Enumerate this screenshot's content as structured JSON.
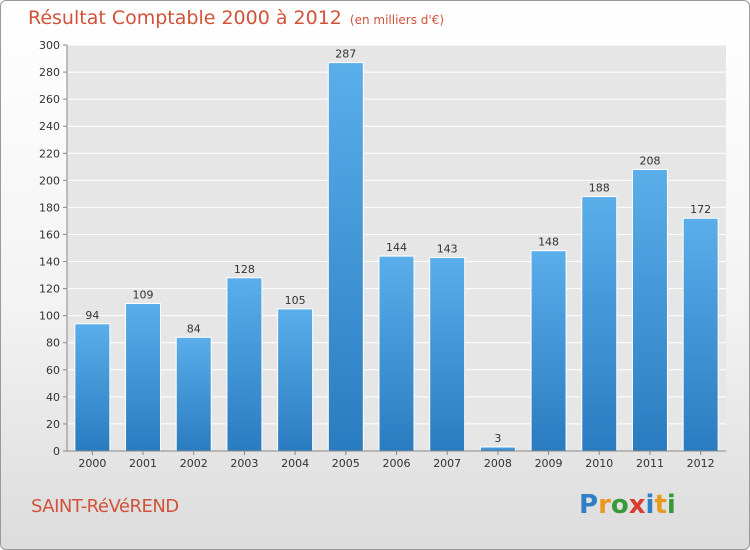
{
  "title": "Résultat Comptable 2000 à 2012",
  "subtitle": "(en milliers d'€)",
  "town": "SAINT-RéVéREND",
  "logo": {
    "p": "P",
    "r": "r",
    "o": "o",
    "x": "x",
    "i": "i",
    "t": "t",
    "i2": "i"
  },
  "chart_data": {
    "type": "bar",
    "title": "Résultat Comptable 2000 à 2012",
    "subtitle": "(en milliers d'€)",
    "categories": [
      "2000",
      "2001",
      "2002",
      "2003",
      "2004",
      "2005",
      "2006",
      "2007",
      "2008",
      "2009",
      "2010",
      "2011",
      "2012"
    ],
    "values": [
      94,
      109,
      84,
      128,
      105,
      287,
      144,
      143,
      3,
      148,
      188,
      208,
      172
    ],
    "ylim": [
      0,
      300
    ],
    "yticks": [
      0,
      20,
      40,
      60,
      80,
      100,
      120,
      140,
      160,
      180,
      200,
      220,
      240,
      260,
      280,
      300
    ],
    "grid": true,
    "bar_color": "#3d95d8"
  }
}
